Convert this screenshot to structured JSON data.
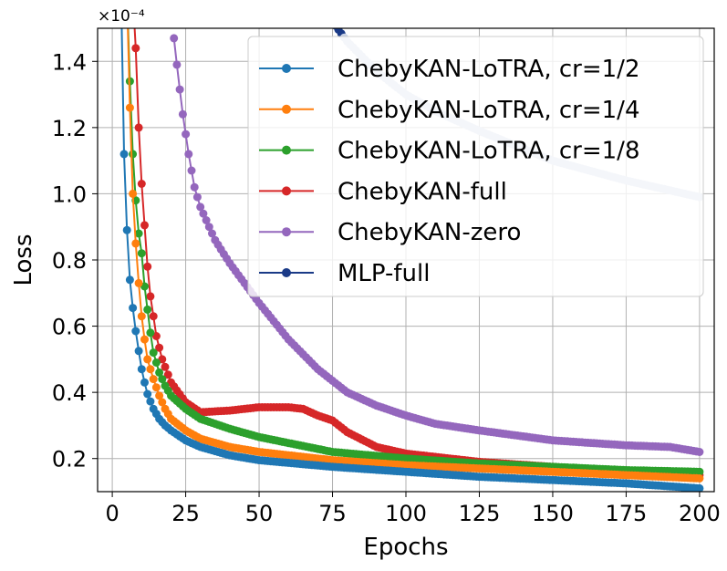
{
  "chart_data": {
    "type": "line",
    "xlabel": "Epochs",
    "ylabel": "Loss",
    "y_scale_label": "×10⁻⁴",
    "xlim": [
      -5,
      205
    ],
    "ylim": [
      0.1,
      1.5
    ],
    "xticks": [
      0,
      25,
      50,
      75,
      100,
      125,
      150,
      175,
      200
    ],
    "xtick_labels": [
      "0",
      "25",
      "50",
      "75",
      "100",
      "125",
      "150",
      "175",
      "200"
    ],
    "yticks": [
      0.2,
      0.4,
      0.6,
      0.8,
      1.0,
      1.2,
      1.4
    ],
    "ytick_labels": [
      "0.2",
      "0.4",
      "0.6",
      "0.8",
      "1.0",
      "1.2",
      "1.4"
    ],
    "grid": true,
    "legend_position": "top-right",
    "series": [
      {
        "name": "ChebyKAN-LoTRA, cr=1/2",
        "color": "#1f77b4",
        "points": [
          [
            3,
            1.6
          ],
          [
            4,
            1.12
          ],
          [
            5,
            0.89
          ],
          [
            6,
            0.74
          ],
          [
            7,
            0.655
          ],
          [
            8,
            0.585
          ],
          [
            9,
            0.525
          ],
          [
            10,
            0.47
          ],
          [
            11,
            0.43
          ],
          [
            12,
            0.395
          ],
          [
            14,
            0.35
          ],
          [
            16,
            0.32
          ],
          [
            18,
            0.3
          ],
          [
            20,
            0.285
          ],
          [
            25,
            0.255
          ],
          [
            30,
            0.235
          ],
          [
            40,
            0.21
          ],
          [
            50,
            0.195
          ],
          [
            75,
            0.175
          ],
          [
            100,
            0.16
          ],
          [
            125,
            0.145
          ],
          [
            150,
            0.135
          ],
          [
            175,
            0.125
          ],
          [
            200,
            0.11
          ]
        ]
      },
      {
        "name": "ChebyKAN-LoTRA, cr=1/4",
        "color": "#ff7f0e",
        "points": [
          [
            5,
            1.6
          ],
          [
            6,
            1.26
          ],
          [
            7,
            1.0
          ],
          [
            8,
            0.85
          ],
          [
            9,
            0.73
          ],
          [
            10,
            0.63
          ],
          [
            11,
            0.56
          ],
          [
            12,
            0.5
          ],
          [
            14,
            0.44
          ],
          [
            16,
            0.39
          ],
          [
            18,
            0.35
          ],
          [
            20,
            0.32
          ],
          [
            25,
            0.285
          ],
          [
            30,
            0.26
          ],
          [
            40,
            0.235
          ],
          [
            50,
            0.22
          ],
          [
            75,
            0.195
          ],
          [
            100,
            0.18
          ],
          [
            125,
            0.17
          ],
          [
            150,
            0.16
          ],
          [
            175,
            0.15
          ],
          [
            200,
            0.14
          ]
        ]
      },
      {
        "name": "ChebyKAN-LoTRA, cr=1/8",
        "color": "#2ca02c",
        "points": [
          [
            5,
            1.6
          ],
          [
            6,
            1.34
          ],
          [
            7,
            1.12
          ],
          [
            8,
            0.98
          ],
          [
            9,
            0.88
          ],
          [
            10,
            0.82
          ],
          [
            11,
            0.72
          ],
          [
            12,
            0.65
          ],
          [
            13,
            0.58
          ],
          [
            14,
            0.52
          ],
          [
            16,
            0.46
          ],
          [
            18,
            0.42
          ],
          [
            20,
            0.39
          ],
          [
            25,
            0.35
          ],
          [
            30,
            0.32
          ],
          [
            40,
            0.29
          ],
          [
            50,
            0.265
          ],
          [
            75,
            0.22
          ],
          [
            100,
            0.2
          ],
          [
            125,
            0.185
          ],
          [
            150,
            0.175
          ],
          [
            175,
            0.165
          ],
          [
            200,
            0.16
          ]
        ]
      },
      {
        "name": "ChebyKAN-full",
        "color": "#d62728",
        "points": [
          [
            7,
            1.6
          ],
          [
            8,
            1.44
          ],
          [
            9,
            1.2
          ],
          [
            10,
            1.03
          ],
          [
            11,
            0.905
          ],
          [
            12,
            0.78
          ],
          [
            13,
            0.69
          ],
          [
            14,
            0.63
          ],
          [
            15,
            0.57
          ],
          [
            17,
            0.5
          ],
          [
            20,
            0.43
          ],
          [
            25,
            0.37
          ],
          [
            30,
            0.34
          ],
          [
            40,
            0.345
          ],
          [
            50,
            0.355
          ],
          [
            60,
            0.355
          ],
          [
            65,
            0.35
          ],
          [
            70,
            0.33
          ],
          [
            75,
            0.315
          ],
          [
            80,
            0.28
          ],
          [
            90,
            0.235
          ],
          [
            100,
            0.215
          ],
          [
            125,
            0.19
          ],
          [
            150,
            0.175
          ],
          [
            175,
            0.16
          ],
          [
            200,
            0.15
          ]
        ]
      },
      {
        "name": "ChebyKAN-zero",
        "color": "#9467bd",
        "points": [
          [
            21,
            1.47
          ],
          [
            22,
            1.39
          ],
          [
            24,
            1.24
          ],
          [
            26,
            1.12
          ],
          [
            28,
            1.02
          ],
          [
            30,
            0.96
          ],
          [
            35,
            0.86
          ],
          [
            40,
            0.79
          ],
          [
            45,
            0.73
          ],
          [
            50,
            0.67
          ],
          [
            60,
            0.56
          ],
          [
            70,
            0.47
          ],
          [
            80,
            0.4
          ],
          [
            90,
            0.36
          ],
          [
            100,
            0.33
          ],
          [
            110,
            0.305
          ],
          [
            125,
            0.285
          ],
          [
            150,
            0.255
          ],
          [
            175,
            0.24
          ],
          [
            190,
            0.235
          ],
          [
            200,
            0.22
          ]
        ]
      },
      {
        "name": "MLP-full",
        "color": "#1a3a87",
        "faded_color": "#c9d2e6",
        "points": [
          [
            73,
            1.55
          ],
          [
            75,
            1.52
          ],
          [
            80,
            1.46
          ],
          [
            90,
            1.37
          ],
          [
            100,
            1.3
          ],
          [
            110,
            1.25
          ],
          [
            125,
            1.19
          ],
          [
            150,
            1.1
          ],
          [
            175,
            1.04
          ],
          [
            200,
            0.99
          ]
        ]
      }
    ]
  }
}
